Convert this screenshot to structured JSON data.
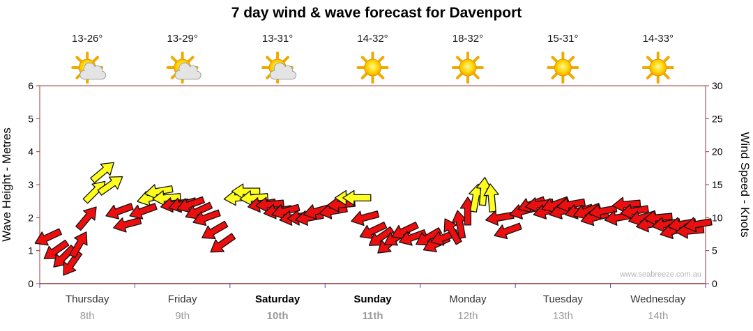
{
  "title": "7 day wind & wave forecast for Davenport",
  "watermark": "www.seabreeze.com.au",
  "axes": {
    "left_label": "Wave Height - Metres",
    "right_label": "Wind Speed - Knots",
    "left_ticks": [
      0,
      1,
      2,
      3,
      4,
      5,
      6
    ],
    "right_ticks": [
      0,
      5,
      10,
      15,
      20,
      25,
      30
    ]
  },
  "days": [
    {
      "name": "Thursday",
      "date": "8th",
      "temp": "13-26°",
      "icon": "partly-cloudy",
      "bold": false
    },
    {
      "name": "Friday",
      "date": "9th",
      "temp": "13-29°",
      "icon": "partly-cloudy",
      "bold": false
    },
    {
      "name": "Saturday",
      "date": "10th",
      "temp": "13-31°",
      "icon": "partly-cloudy",
      "bold": true
    },
    {
      "name": "Sunday",
      "date": "11th",
      "temp": "14-32°",
      "icon": "sunny",
      "bold": true
    },
    {
      "name": "Monday",
      "date": "12th",
      "temp": "18-32°",
      "icon": "sunny",
      "bold": false
    },
    {
      "name": "Tuesday",
      "date": "13th",
      "temp": "15-31°",
      "icon": "sunny",
      "bold": false
    },
    {
      "name": "Wednesday",
      "date": "14th",
      "temp": "14-33°",
      "icon": "sunny",
      "bold": false
    }
  ],
  "chart_data": {
    "type": "scatter",
    "subtype": "wind-arrows",
    "x_unit": "hours_from_start",
    "x_range": [
      0,
      168
    ],
    "wind_axis_range_knots": [
      0,
      30
    ],
    "wave_axis_range_metres": [
      0,
      6
    ],
    "strong_threshold_knots": 13,
    "arrow_colors": {
      "light": "#ed0f0f",
      "strong": "#ffff1e"
    },
    "arrow_format": [
      "hour_offset",
      "knots",
      "direction_deg_ccw_from_east"
    ],
    "arrows": [
      [
        2,
        7,
        205
      ],
      [
        4,
        5,
        215
      ],
      [
        6,
        4,
        225
      ],
      [
        8,
        3,
        235
      ],
      [
        10,
        6,
        60
      ],
      [
        12,
        10,
        50
      ],
      [
        14,
        14,
        45
      ],
      [
        16,
        17,
        40
      ],
      [
        18,
        15,
        35
      ],
      [
        20,
        11,
        200
      ],
      [
        22,
        9,
        195
      ],
      [
        26,
        11,
        200
      ],
      [
        28,
        13,
        195
      ],
      [
        30,
        14,
        190
      ],
      [
        32,
        13,
        185
      ],
      [
        34,
        12,
        190
      ],
      [
        36,
        12,
        195
      ],
      [
        38,
        12,
        200
      ],
      [
        40,
        11,
        205
      ],
      [
        42,
        10,
        200
      ],
      [
        44,
        8,
        210
      ],
      [
        46,
        6,
        215
      ],
      [
        50,
        13,
        185
      ],
      [
        52,
        14,
        180
      ],
      [
        54,
        13,
        185
      ],
      [
        56,
        12,
        190
      ],
      [
        58,
        12,
        185
      ],
      [
        60,
        11,
        190
      ],
      [
        62,
        11,
        195
      ],
      [
        64,
        10,
        190
      ],
      [
        66,
        10,
        185
      ],
      [
        68,
        10,
        190
      ],
      [
        70,
        11,
        195
      ],
      [
        74,
        11,
        190
      ],
      [
        76,
        12,
        185
      ],
      [
        78,
        13,
        180
      ],
      [
        80,
        13,
        180
      ],
      [
        82,
        10,
        195
      ],
      [
        84,
        8,
        205
      ],
      [
        86,
        7,
        215
      ],
      [
        88,
        6,
        220
      ],
      [
        90,
        7,
        210
      ],
      [
        92,
        8,
        205
      ],
      [
        94,
        7,
        200
      ],
      [
        98,
        7,
        210
      ],
      [
        100,
        6,
        205
      ],
      [
        102,
        7,
        200
      ],
      [
        104,
        8,
        120
      ],
      [
        106,
        9,
        100
      ],
      [
        108,
        11,
        90
      ],
      [
        110,
        13,
        80
      ],
      [
        112,
        14,
        85
      ],
      [
        114,
        13,
        95
      ],
      [
        116,
        10,
        190
      ],
      [
        118,
        8,
        200
      ],
      [
        122,
        11,
        195
      ],
      [
        124,
        12,
        200
      ],
      [
        126,
        12,
        190
      ],
      [
        128,
        11,
        195
      ],
      [
        130,
        12,
        200
      ],
      [
        132,
        11,
        195
      ],
      [
        134,
        12,
        190
      ],
      [
        136,
        11,
        195
      ],
      [
        138,
        11,
        200
      ],
      [
        140,
        10,
        195
      ],
      [
        142,
        11,
        190
      ],
      [
        146,
        10,
        190
      ],
      [
        148,
        12,
        185
      ],
      [
        150,
        11,
        190
      ],
      [
        152,
        10,
        195
      ],
      [
        154,
        9,
        190
      ],
      [
        156,
        10,
        185
      ],
      [
        158,
        9,
        190
      ],
      [
        160,
        8,
        195
      ],
      [
        162,
        9,
        190
      ],
      [
        164,
        8,
        185
      ],
      [
        166,
        9,
        190
      ]
    ]
  }
}
